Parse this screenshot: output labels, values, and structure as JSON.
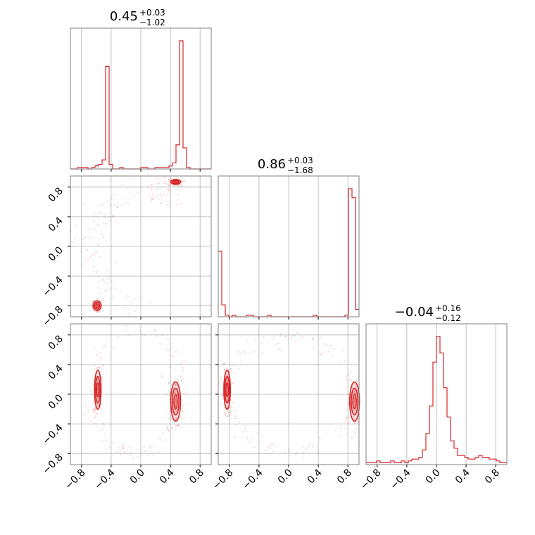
{
  "chart_data": {
    "type": "corner",
    "series_color": "#d62728",
    "grid": true,
    "axis_range": [
      -0.95,
      0.95
    ],
    "tick_values": [
      -0.8,
      -0.4,
      0.0,
      0.4,
      0.8
    ],
    "tick_labels": [
      "−0.8",
      "−0.4",
      "0.0",
      "0.4",
      "0.8"
    ],
    "parameters": [
      {
        "title_value": "0.45",
        "title_plus": "+0.03",
        "title_minus": "−1.02"
      },
      {
        "title_value": "0.86",
        "title_plus": "+0.03",
        "title_minus": "−1.68"
      },
      {
        "title_value": "−0.04",
        "title_plus": "+0.16",
        "title_minus": "−0.12"
      }
    ],
    "histograms": [
      {
        "edges": [
          -0.95,
          0.95
        ],
        "bins": 40,
        "counts": [
          0,
          0,
          1,
          1,
          1,
          0,
          1,
          2,
          3,
          6,
          68,
          3,
          0,
          0,
          1,
          0,
          0,
          0,
          0,
          0,
          1,
          1,
          0,
          0,
          1,
          1,
          1,
          1,
          2,
          4,
          16,
          85,
          14,
          1,
          0,
          0,
          0,
          0,
          0,
          0
        ]
      },
      {
        "edges": [
          -0.95,
          0.95
        ],
        "bins": 40,
        "counts": [
          44,
          8,
          1,
          0,
          1,
          0,
          0,
          0,
          1,
          1,
          0,
          0,
          0,
          0,
          1,
          0,
          0,
          0,
          0,
          0,
          0,
          0,
          0,
          0,
          0,
          0,
          0,
          1,
          0,
          0,
          0,
          0,
          0,
          0,
          0,
          0,
          1,
          86,
          80,
          5
        ]
      },
      {
        "edges": [
          -0.95,
          0.95
        ],
        "bins": 40,
        "counts": [
          1,
          1,
          1,
          2,
          1,
          1,
          1,
          2,
          1,
          1,
          2,
          1,
          2,
          3,
          3,
          4,
          8,
          17,
          32,
          56,
          70,
          61,
          42,
          26,
          13,
          9,
          5,
          5,
          4,
          3,
          3,
          4,
          5,
          4,
          4,
          3,
          3,
          2,
          1,
          1
        ]
      }
    ],
    "modes": [
      {
        "x": 0.46,
        "y": 0.87,
        "x2": -0.59,
        "y2": 0.06
      },
      {
        "x": -0.57,
        "y": -0.8,
        "x2": 0.88,
        "y2": -0.1
      }
    ]
  }
}
